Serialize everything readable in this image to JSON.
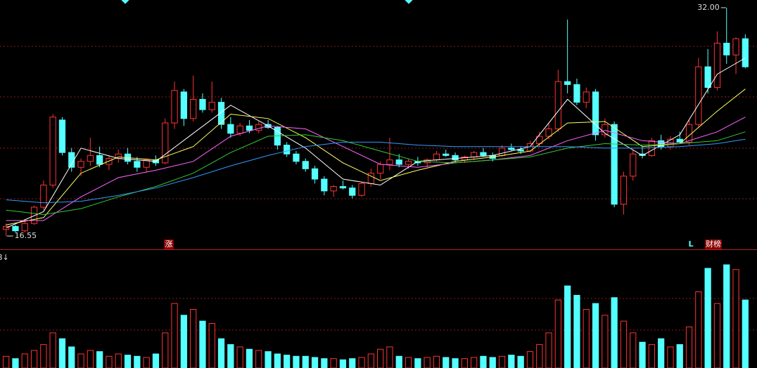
{
  "chart_data": {
    "type": "candlestick",
    "up_color": "#ff3232",
    "down_color": "#54ffff",
    "ylim": [
      15.65,
      32.52
    ],
    "volume_lim": [
      0,
      100
    ],
    "high_label": {
      "value": 32,
      "label": "32.00"
    },
    "low_label": {
      "value": 16.55,
      "label": "16.55"
    },
    "markers": [
      "涨",
      "L",
      "财榜"
    ],
    "volume_label": "B↓",
    "open": [
      17.0,
      17.2,
      16.9,
      17.4,
      18.5,
      20.0,
      24.4,
      22.2,
      21.2,
      21.6,
      22.0,
      21.4,
      21.8,
      22.1,
      21.6,
      21.2,
      21.7,
      21.5,
      24.2,
      26.3,
      24.5,
      25.8,
      25.1,
      25.6,
      24.1,
      23.5,
      24.0,
      23.7,
      24.1,
      23.9,
      22.7,
      22.1,
      21.6,
      21.1,
      20.4,
      19.6,
      19.9,
      19.8,
      19.3,
      20.1,
      20.8,
      21.4,
      21.7,
      21.4,
      21.6,
      21.5,
      21.7,
      22.1,
      22.0,
      21.7,
      21.9,
      22.2,
      22.0,
      22.0,
      22.5,
      22.4,
      22.3,
      22.8,
      23.3,
      23.8,
      27.0,
      26.8,
      25.6,
      26.3,
      23.4,
      24.1,
      18.7,
      20.6,
      22.1,
      22.0,
      23.0,
      22.6,
      23.1,
      22.9,
      24.1,
      28.0,
      26.6,
      29.6,
      28.8,
      29.9
    ],
    "high": [
      17.4,
      17.3,
      17.5,
      18.6,
      20.3,
      24.8,
      24.6,
      22.5,
      21.8,
      23.2,
      22.6,
      22.0,
      22.4,
      22.5,
      21.9,
      21.8,
      22.0,
      24.5,
      27.0,
      26.5,
      27.4,
      26.2,
      27.0,
      25.9,
      24.6,
      24.2,
      24.4,
      24.3,
      24.4,
      24.0,
      22.9,
      22.3,
      21.8,
      21.3,
      20.6,
      20.0,
      20.3,
      20.0,
      20.2,
      21.1,
      21.6,
      23.2,
      22.1,
      21.8,
      21.9,
      21.8,
      22.3,
      22.4,
      22.2,
      22.0,
      22.3,
      22.5,
      22.2,
      22.7,
      22.8,
      22.6,
      23.0,
      23.6,
      24.2,
      27.8,
      31.2,
      27.2,
      26.6,
      26.5,
      24.5,
      24.3,
      20.9,
      22.4,
      22.6,
      23.2,
      23.4,
      23.3,
      23.6,
      24.4,
      28.6,
      29.2,
      30.4,
      32.0,
      30.0,
      30.2
    ],
    "low": [
      16.55,
      16.8,
      16.8,
      17.3,
      18.3,
      19.8,
      22.0,
      20.9,
      20.6,
      21.3,
      21.2,
      21.0,
      21.5,
      21.4,
      20.9,
      20.9,
      21.3,
      21.4,
      23.8,
      24.0,
      24.3,
      24.9,
      24.9,
      23.8,
      23.2,
      23.3,
      23.5,
      23.5,
      23.8,
      22.4,
      21.9,
      21.4,
      20.9,
      20.1,
      19.3,
      19.2,
      19.7,
      19.1,
      19.2,
      19.9,
      20.4,
      21.0,
      21.2,
      21.1,
      21.3,
      21.2,
      21.6,
      21.9,
      21.5,
      21.5,
      21.7,
      21.9,
      21.6,
      21.9,
      22.3,
      22.1,
      22.2,
      22.6,
      23.1,
      23.6,
      26.2,
      25.4,
      25.2,
      23.0,
      23.2,
      18.5,
      18.0,
      20.3,
      21.8,
      21.9,
      22.4,
      22.4,
      22.8,
      22.7,
      23.9,
      26.2,
      26.4,
      28.2,
      27.5,
      27.9
    ],
    "close": [
      17.2,
      16.9,
      17.4,
      18.5,
      20.0,
      24.6,
      22.2,
      21.2,
      21.6,
      22.0,
      21.4,
      21.8,
      22.1,
      21.6,
      21.2,
      21.7,
      21.5,
      24.2,
      26.4,
      24.5,
      25.8,
      25.1,
      25.6,
      24.1,
      23.5,
      24.0,
      23.7,
      24.1,
      23.9,
      22.7,
      22.1,
      21.6,
      21.1,
      20.4,
      19.6,
      19.9,
      19.8,
      19.3,
      20.1,
      20.8,
      21.4,
      21.7,
      21.4,
      21.6,
      21.5,
      21.7,
      22.1,
      22.0,
      21.7,
      21.9,
      22.2,
      22.0,
      21.8,
      22.5,
      22.4,
      22.3,
      22.8,
      23.3,
      23.8,
      27.0,
      26.8,
      25.6,
      26.3,
      23.4,
      24.1,
      18.7,
      20.6,
      22.1,
      22.0,
      23.0,
      22.6,
      23.1,
      22.9,
      24.1,
      28.0,
      26.6,
      29.6,
      28.8,
      29.9,
      28.0
    ],
    "volume": [
      10,
      8,
      12,
      15,
      20,
      30,
      25,
      18,
      12,
      15,
      14,
      10,
      12,
      11,
      10,
      9,
      12,
      30,
      55,
      45,
      50,
      40,
      38,
      25,
      20,
      18,
      16,
      15,
      14,
      12,
      11,
      10,
      10,
      9,
      8,
      8,
      7,
      8,
      9,
      12,
      16,
      18,
      10,
      9,
      8,
      9,
      10,
      9,
      8,
      8,
      9,
      10,
      9,
      10,
      11,
      10,
      14,
      20,
      30,
      58,
      70,
      62,
      50,
      55,
      45,
      60,
      40,
      30,
      22,
      20,
      25,
      18,
      20,
      35,
      65,
      85,
      55,
      88,
      84,
      58
    ],
    "series": [
      {
        "color": "#ffffff",
        "x": [
          0,
          4,
          8,
          12,
          16,
          20,
          24,
          28,
          32,
          36,
          40,
          44,
          48,
          52,
          56,
          60,
          64,
          68,
          72,
          76,
          79
        ],
        "values": [
          17.1,
          18.2,
          22.5,
          21.8,
          21.6,
          23.5,
          25.4,
          24.0,
          22.5,
          20.4,
          20.0,
          21.6,
          21.8,
          22.0,
          22.6,
          25.8,
          23.5,
          22.0,
          23.4,
          27.5,
          28.6
        ]
      },
      {
        "color": "#ffff66",
        "x": [
          0,
          4,
          8,
          12,
          16,
          20,
          24,
          28,
          32,
          36,
          40,
          44,
          48,
          52,
          56,
          60,
          64,
          68,
          72,
          76,
          79
        ],
        "values": [
          17.3,
          17.8,
          20.8,
          21.9,
          21.7,
          22.6,
          24.8,
          24.5,
          23.2,
          21.5,
          20.3,
          21.0,
          21.6,
          21.9,
          22.3,
          24.2,
          24.3,
          22.6,
          22.8,
          25.0,
          26.5
        ]
      },
      {
        "color": "#ff66ff",
        "x": [
          0,
          4,
          8,
          12,
          16,
          20,
          24,
          28,
          32,
          36,
          40,
          44,
          48,
          52,
          56,
          60,
          64,
          68,
          72,
          76,
          79
        ],
        "values": [
          17.6,
          17.6,
          19.2,
          20.5,
          21.0,
          21.6,
          23.3,
          24.0,
          23.8,
          22.6,
          21.4,
          21.2,
          21.5,
          21.7,
          22.0,
          23.0,
          23.7,
          23.0,
          22.8,
          23.6,
          24.6
        ]
      },
      {
        "color": "#33cc33",
        "x": [
          0,
          4,
          8,
          12,
          16,
          20,
          24,
          28,
          32,
          36,
          40,
          44,
          48,
          52,
          56,
          60,
          64,
          68,
          72,
          76,
          79
        ],
        "values": [
          18.3,
          18.0,
          18.4,
          19.2,
          19.9,
          20.8,
          22.2,
          23.3,
          23.4,
          23.0,
          22.3,
          21.6,
          21.5,
          21.7,
          21.9,
          22.5,
          22.8,
          22.7,
          22.8,
          23.0,
          23.6
        ]
      },
      {
        "color": "#3399ff",
        "x": [
          0,
          4,
          8,
          12,
          16,
          20,
          24,
          28,
          32,
          36,
          40,
          44,
          48,
          52,
          56,
          60,
          64,
          68,
          72,
          76,
          79
        ],
        "values": [
          19.0,
          18.8,
          18.9,
          19.3,
          19.8,
          20.5,
          21.3,
          22.0,
          22.6,
          22.9,
          22.9,
          22.7,
          22.6,
          22.6,
          22.6,
          22.6,
          22.5,
          22.5,
          22.6,
          22.8,
          23.1
        ]
      }
    ]
  }
}
